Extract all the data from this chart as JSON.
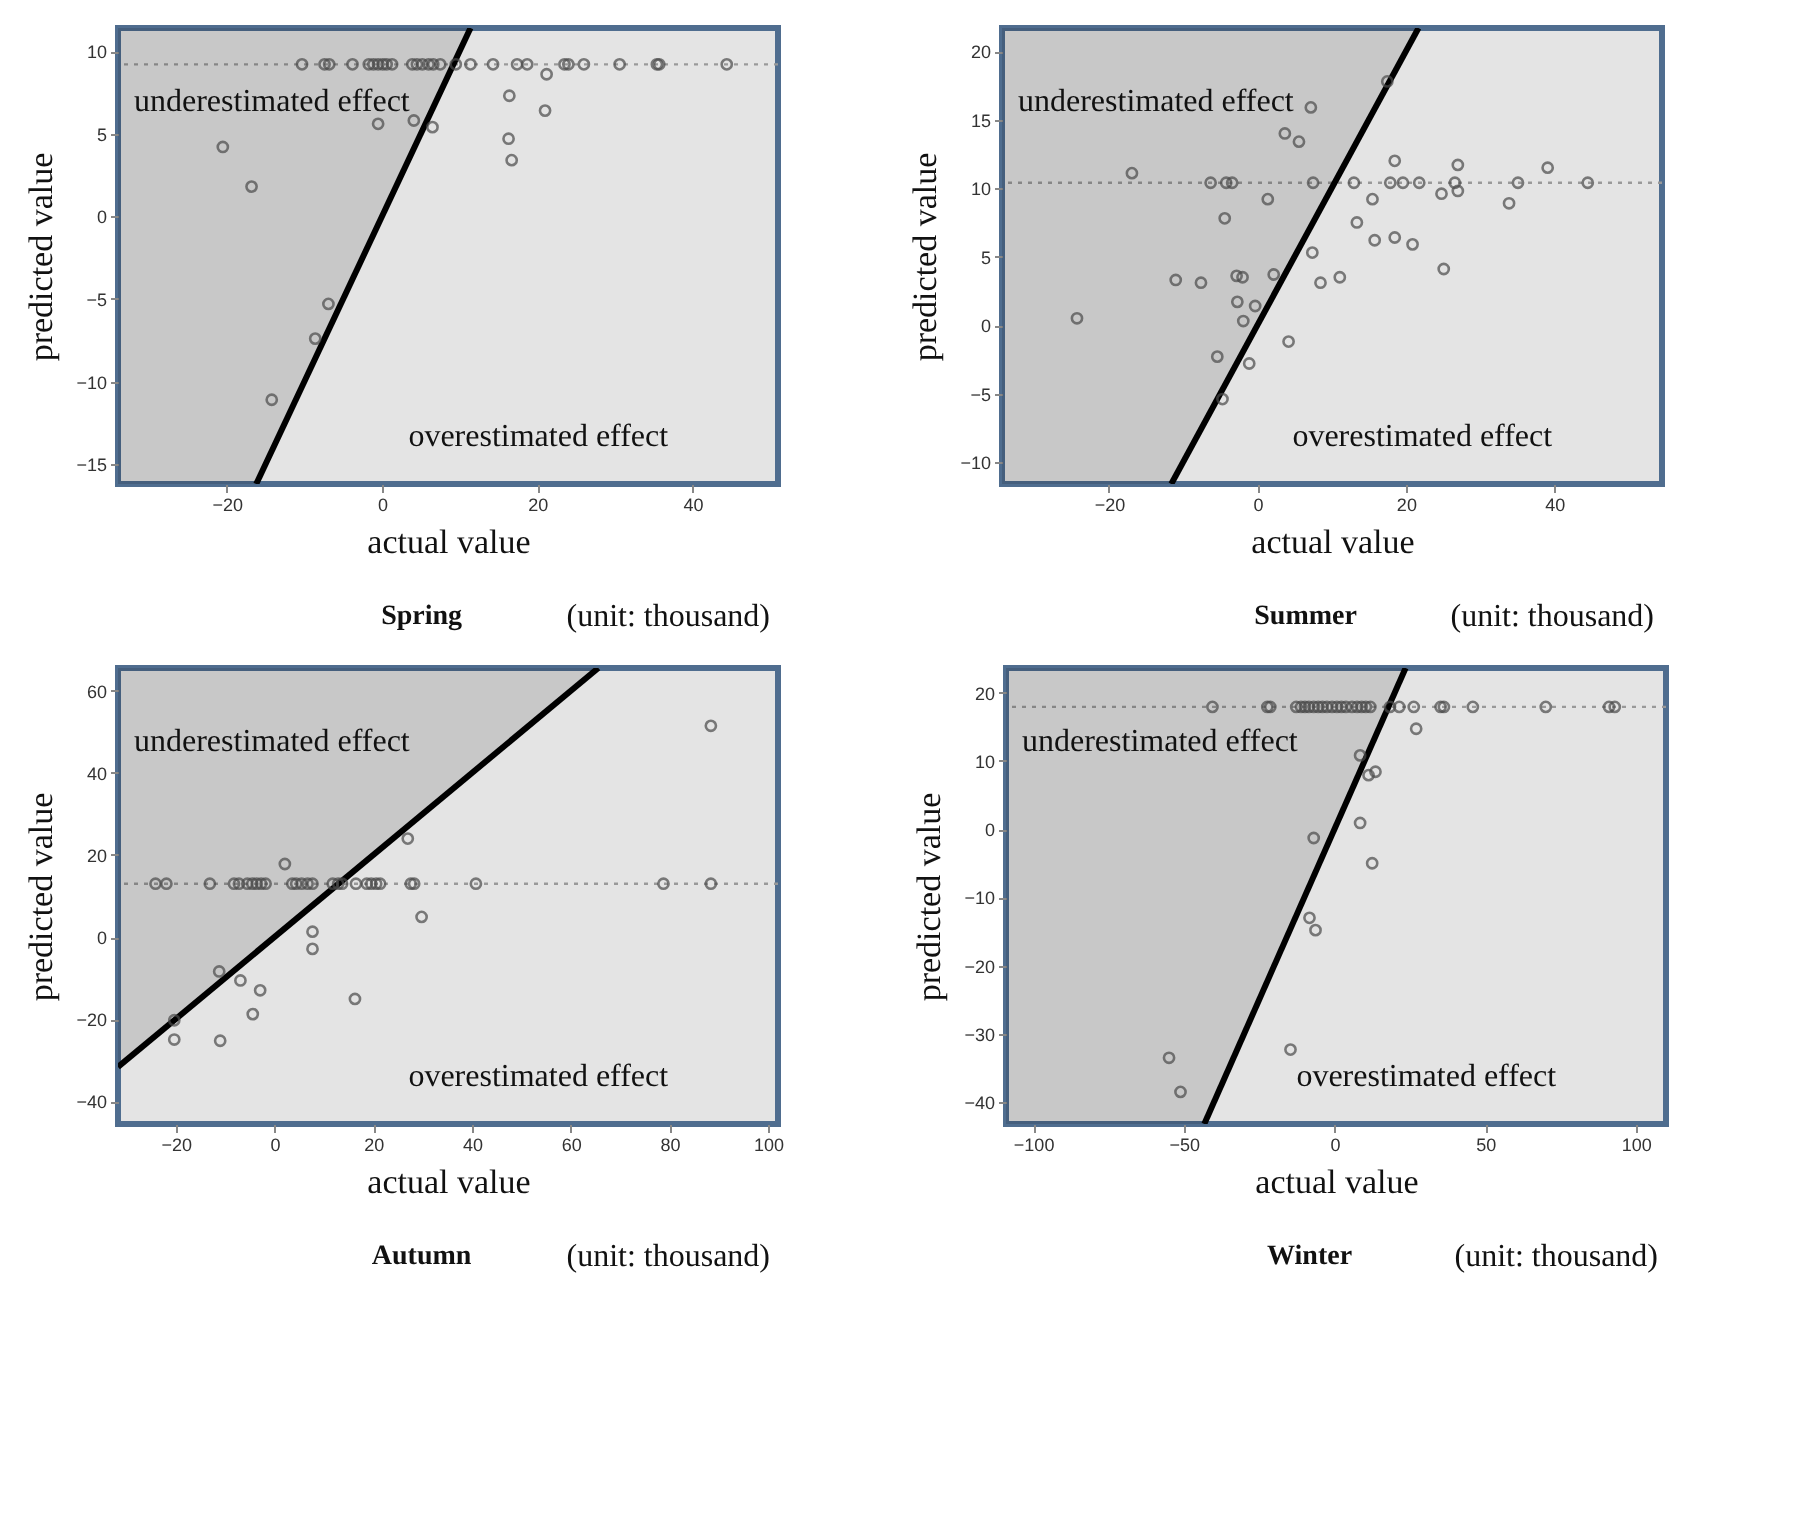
{
  "chart_data": [
    {
      "type": "scatter",
      "title": "Spring",
      "xlabel": "actual value",
      "ylabel": "predicted value",
      "annotations": [
        "underestimated effect",
        "overestimated effect",
        "(unit: thousand)"
      ],
      "xlim": [
        -34,
        51
      ],
      "ylim": [
        -16.2,
        11.4
      ],
      "xticks": [
        -20,
        0,
        20,
        40
      ],
      "yticks": [
        -15,
        -10,
        -5,
        0,
        5,
        10
      ],
      "grid": false,
      "ref_lines": [
        {
          "axis": "y",
          "value": 9.2,
          "color": "#999999",
          "line_style": "dotted"
        }
      ],
      "series": [
        {
          "type": "line",
          "marker": "none",
          "color": "#000000",
          "x": [
            -34,
            -16.2,
            11.4
          ],
          "values": [
            null,
            -16.2,
            11.4
          ],
          "lower": [
            -16.2,
            -16.2,
            11.4
          ],
          "upper": [
            11.4,
            11.4,
            11.4
          ]
        },
        {
          "type": "scatter",
          "marker": "circle",
          "color": "#4a4a4a",
          "x": [
            -10.3,
            -7.4,
            -6.8,
            -3.8,
            -1.7,
            -1.1,
            -0.5,
            0.1,
            0.6,
            1.3,
            3.9,
            4.5,
            5.2,
            6.0,
            6.6,
            7.5,
            9.5,
            11.4,
            14.3,
            17.4,
            18.7,
            23.5,
            24.0,
            26.0,
            30.6,
            35.4,
            35.7,
            44.4,
            21.2,
            16.4,
            21.0,
            -0.5,
            4.1,
            6.5,
            -20.5,
            16.3,
            16.7,
            -16.8,
            -6.9,
            -8.6,
            -14.2
          ],
          "values": [
            9.2,
            9.2,
            9.2,
            9.2,
            9.2,
            9.2,
            9.2,
            9.2,
            9.2,
            9.2,
            9.2,
            9.2,
            9.2,
            9.2,
            9.2,
            9.2,
            9.2,
            9.2,
            9.2,
            9.2,
            9.2,
            9.2,
            9.2,
            9.2,
            9.2,
            9.2,
            9.2,
            9.2,
            8.6,
            7.3,
            6.4,
            5.6,
            5.8,
            5.4,
            4.2,
            4.7,
            3.4,
            1.8,
            -5.3,
            -7.4,
            -11.1
          ]
        }
      ]
    },
    {
      "type": "scatter",
      "title": "Summer",
      "xlabel": "actual value",
      "ylabel": "predicted value",
      "annotations": [
        "underestimated effect",
        "overestimated effect",
        "(unit: thousand)"
      ],
      "xlim": [
        -34.4,
        54.5
      ],
      "ylim": [
        -11.6,
        21.7
      ],
      "xticks": [
        -20,
        0,
        20,
        40
      ],
      "yticks": [
        -10,
        -5,
        0,
        5,
        10,
        15,
        20
      ],
      "grid": false,
      "ref_lines": [
        {
          "axis": "y",
          "value": 10.4,
          "color": "#999999",
          "line_style": "dotted"
        }
      ],
      "series": [
        {
          "type": "line",
          "marker": "none",
          "color": "#000000",
          "x": [
            -34.4,
            -11.6,
            21.7
          ],
          "values": [
            null,
            -11.6,
            21.7
          ],
          "lower": [
            -11.6,
            -11.6,
            21.7
          ],
          "upper": [
            21.7,
            21.7,
            21.7
          ]
        },
        {
          "type": "scatter",
          "marker": "circle",
          "color": "#4a4a4a",
          "x": [
            -6.3,
            -4.2,
            -3.4,
            7.5,
            13.0,
            17.9,
            19.6,
            21.8,
            26.6,
            35.1,
            44.5,
            17.5,
            7.2,
            3.7,
            5.6,
            18.5,
            27.0,
            39.1,
            -16.9,
            24.8,
            27.0,
            33.9,
            1.4,
            15.5,
            -4.4,
            13.4,
            7.4,
            15.8,
            18.5,
            20.9,
            25.1,
            -11.0,
            -7.6,
            -2.8,
            -2.0,
            2.2,
            8.5,
            11.1,
            -2.7,
            -0.3,
            -1.9,
            -24.3,
            4.2,
            -5.4,
            -1.1,
            -4.7
          ],
          "values": [
            10.4,
            10.4,
            10.4,
            10.4,
            10.4,
            10.4,
            10.4,
            10.4,
            10.4,
            10.4,
            10.4,
            17.8,
            15.9,
            14.0,
            13.4,
            12.0,
            11.7,
            11.5,
            11.1,
            9.6,
            9.8,
            8.9,
            9.2,
            9.2,
            7.8,
            7.5,
            5.3,
            6.2,
            6.4,
            5.9,
            4.1,
            3.3,
            3.1,
            3.6,
            3.5,
            3.7,
            3.1,
            3.5,
            1.7,
            1.4,
            0.3,
            0.5,
            -1.2,
            -2.3,
            -2.8,
            -5.4
          ]
        }
      ]
    },
    {
      "type": "scatter",
      "title": "Autumn",
      "xlabel": "actual value",
      "ylabel": "predicted value",
      "annotations": [
        "underestimated effect",
        "overestimated effect",
        "(unit: thousand)"
      ],
      "xlim": [
        -31.7,
        102
      ],
      "ylim": [
        -45.6,
        65.6
      ],
      "xticks": [
        -20,
        0,
        20,
        40,
        60,
        80,
        100
      ],
      "yticks": [
        -40,
        -20,
        0,
        20,
        40,
        60
      ],
      "grid": false,
      "ref_lines": [
        {
          "axis": "y",
          "value": 13,
          "color": "#999999",
          "line_style": "dotted"
        }
      ],
      "series": [
        {
          "type": "line",
          "marker": "none",
          "color": "#000000",
          "x": [
            -31.7,
            65.6
          ],
          "values": [
            -31.7,
            65.6
          ],
          "lower": [
            -31.7,
            65.6
          ],
          "upper": [
            65.6,
            65.6
          ]
        },
        {
          "type": "scatter",
          "marker": "circle",
          "color": "#4a4a4a",
          "x": [
            -24.1,
            -21.9,
            -13.1,
            -8.2,
            -7.2,
            -5.5,
            -4.5,
            -3.6,
            -2.7,
            -1.8,
            3.6,
            4.4,
            5.5,
            6.7,
            7.7,
            11.8,
            12.9,
            13.7,
            16.5,
            18.7,
            19.6,
            20.6,
            21.4,
            27.6,
            28.3,
            40.8,
            78.8,
            88.4,
            88.4,
            27.0,
            2.1,
            29.8,
            7.7,
            7.7,
            -11.2,
            -6.9,
            -2.9,
            -4.4,
            16.3,
            -20.3,
            -20.3,
            -11.0
          ],
          "values": [
            13,
            13,
            13,
            13,
            13,
            13,
            13,
            13,
            13,
            13,
            13,
            13,
            13,
            13,
            13,
            13,
            13,
            13,
            13,
            13,
            13,
            13,
            13,
            13,
            13,
            13,
            13,
            13,
            51.5,
            24.0,
            17.8,
            4.9,
            1.3,
            -2.9,
            -8.4,
            -10.6,
            -13.0,
            -18.8,
            -15.1,
            -20.3,
            -25.0,
            -25.3
          ]
        }
      ]
    },
    {
      "type": "scatter",
      "title": "Winter",
      "xlabel": "actual value",
      "ylabel": "predicted value",
      "annotations": [
        "underestimated effect",
        "overestimated effect",
        "(unit: thousand)"
      ],
      "xlim": [
        -109,
        110
      ],
      "ylim": [
        -43.2,
        23.6
      ],
      "xticks": [
        -100,
        -50,
        0,
        50,
        100
      ],
      "yticks": [
        -40,
        -30,
        -20,
        -10,
        0,
        10,
        20
      ],
      "grid": false,
      "ref_lines": [
        {
          "axis": "y",
          "value": 17.9,
          "color": "#999999",
          "line_style": "dotted"
        }
      ],
      "series": [
        {
          "type": "line",
          "marker": "none",
          "color": "#000000",
          "x": [
            -109,
            -43.2,
            23.6
          ],
          "values": [
            null,
            -43.2,
            23.6
          ],
          "lower": [
            -43.2,
            -43.2,
            23.6
          ],
          "upper": [
            23.6,
            23.6,
            23.6
          ]
        },
        {
          "type": "scatter",
          "marker": "circle",
          "color": "#4a4a4a",
          "x": [
            -40.5,
            -22.3,
            -21.3,
            -12.7,
            -11.1,
            -9.8,
            -8.5,
            -6.9,
            -5.4,
            -4.0,
            -2.5,
            -0.8,
            0.8,
            2.3,
            3.8,
            5.8,
            7.5,
            9.0,
            10.4,
            11.9,
            18.4,
            21.5,
            26.3,
            35.2,
            36.3,
            45.9,
            70.1,
            91.1,
            93.0,
            27.1,
            8.5,
            13.6,
            11.3,
            8.5,
            -6.9,
            12.5,
            -8.3,
            -6.3,
            -14.6,
            -54.9,
            -51.1
          ],
          "values": [
            17.9,
            17.9,
            17.9,
            17.9,
            17.9,
            17.9,
            17.9,
            17.9,
            17.9,
            17.9,
            17.9,
            17.9,
            17.9,
            17.9,
            17.9,
            17.9,
            17.9,
            17.9,
            17.9,
            17.9,
            17.9,
            17.9,
            17.9,
            17.9,
            17.9,
            17.9,
            17.9,
            17.9,
            17.9,
            14.7,
            10.8,
            8.4,
            7.9,
            0.9,
            -1.3,
            -5.0,
            -13.0,
            -14.8,
            -32.3,
            -33.5,
            -38.5
          ]
        }
      ]
    }
  ]
}
